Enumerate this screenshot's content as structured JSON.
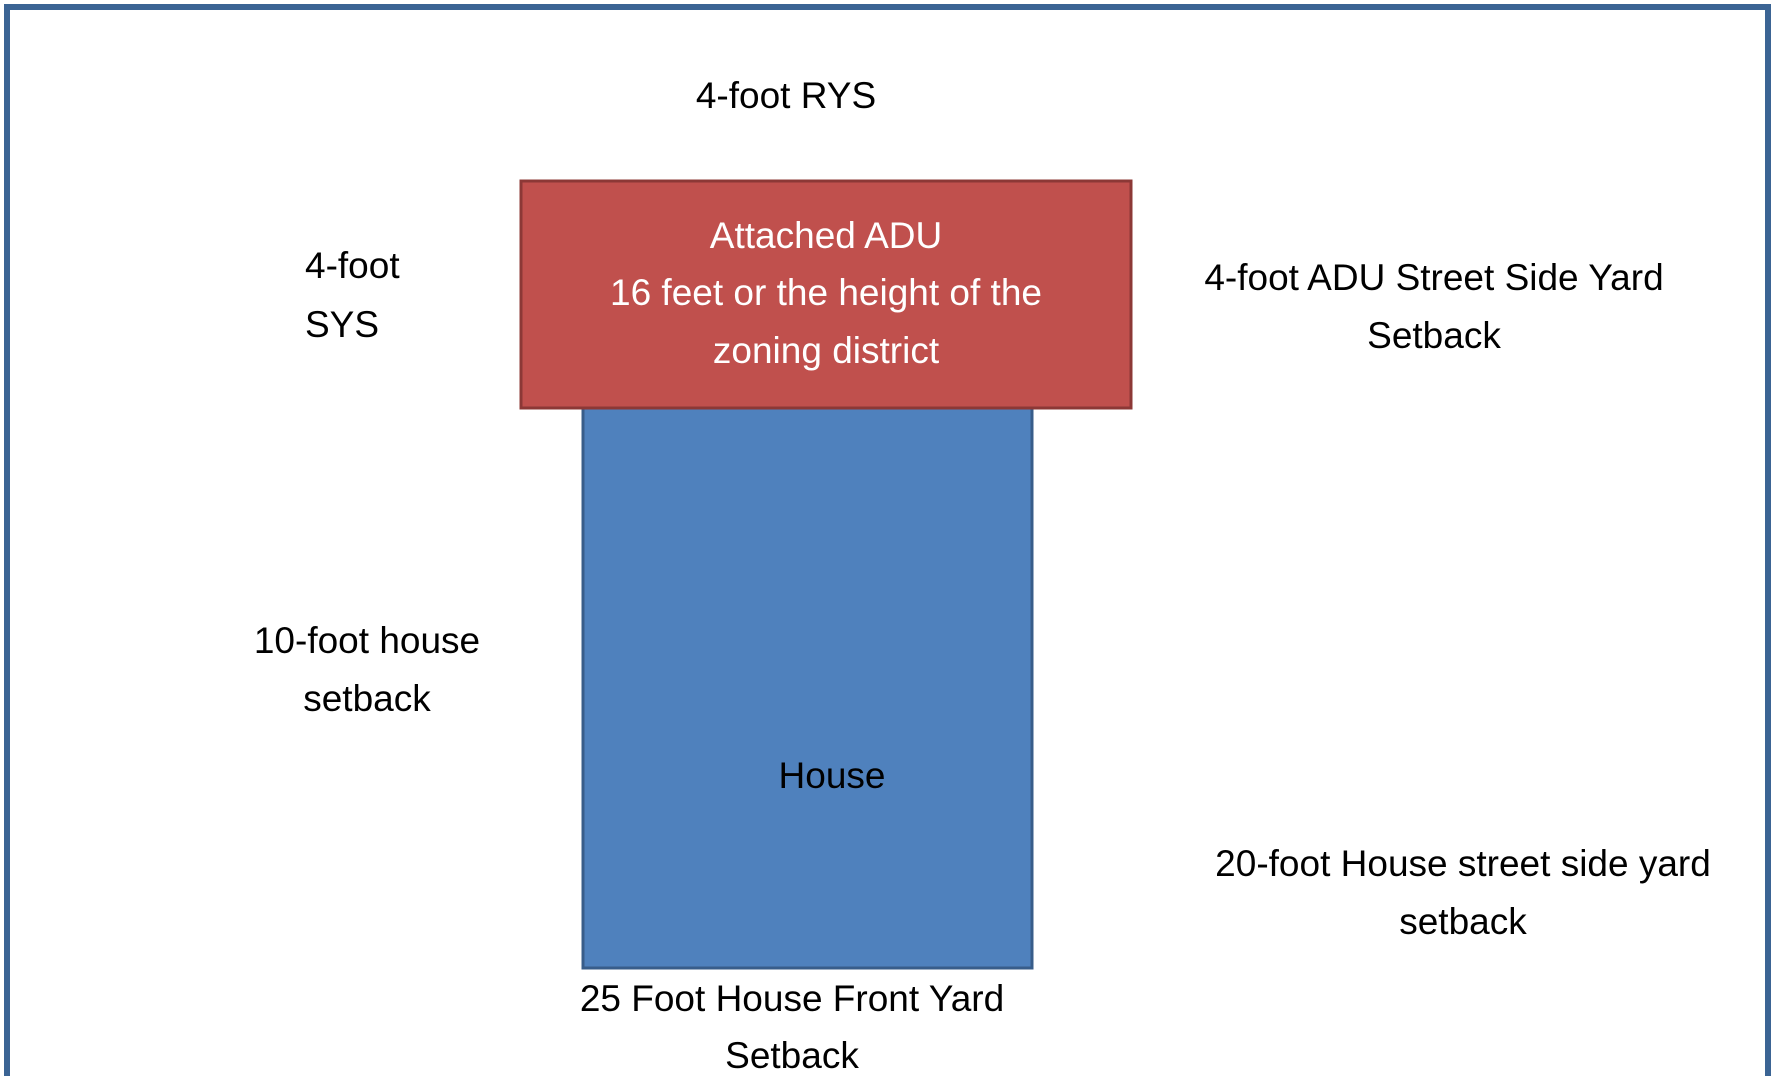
{
  "diagram": {
    "rear_setback": "4-foot RYS",
    "side_setback": {
      "lines": [
        "4-foot",
        "SYS"
      ]
    },
    "adu": {
      "lines": [
        "Attached ADU",
        "16 feet or the height of the",
        "zoning district"
      ]
    },
    "adu_street_side_setback": {
      "lines": [
        "4-foot ADU Street Side Yard",
        "Setback"
      ]
    },
    "house_side_setback": {
      "lines": [
        "10-foot house",
        "setback"
      ]
    },
    "house": "House",
    "house_street_side_setback": {
      "lines": [
        "20-foot House street side yard",
        "setback"
      ]
    },
    "front_setback": {
      "lines": [
        "25 Foot House Front Yard",
        "Setback"
      ]
    }
  }
}
